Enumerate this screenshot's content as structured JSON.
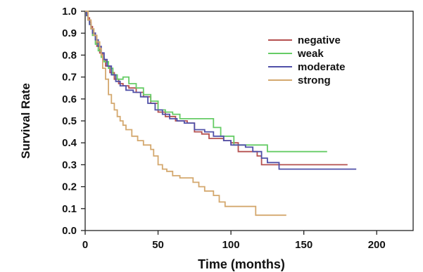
{
  "chart_data": {
    "type": "line",
    "xlabel": "Time (months)",
    "ylabel": "Survival Rate",
    "xlim": [
      0,
      225
    ],
    "ylim": [
      0,
      1.0
    ],
    "x_ticks": [
      "0",
      "50",
      "100",
      "150",
      "200"
    ],
    "y_ticks": [
      "0.0",
      "0.1",
      "0.2",
      "0.3",
      "0.4",
      "0.5",
      "0.6",
      "0.7",
      "0.8",
      "0.9",
      "1.0"
    ],
    "legend_position": "top-right",
    "grid": false,
    "step": true,
    "series": [
      {
        "name": "negative",
        "color": "#b5504f",
        "points": [
          [
            0,
            1.0
          ],
          [
            1,
            0.99
          ],
          [
            2,
            0.97
          ],
          [
            3,
            0.95
          ],
          [
            4,
            0.93
          ],
          [
            5,
            0.9
          ],
          [
            7,
            0.87
          ],
          [
            8,
            0.84
          ],
          [
            10,
            0.81
          ],
          [
            12,
            0.78
          ],
          [
            14,
            0.75
          ],
          [
            17,
            0.72
          ],
          [
            20,
            0.69
          ],
          [
            23,
            0.67
          ],
          [
            26,
            0.66
          ],
          [
            30,
            0.65
          ],
          [
            35,
            0.63
          ],
          [
            40,
            0.61
          ],
          [
            45,
            0.58
          ],
          [
            50,
            0.54
          ],
          [
            55,
            0.52
          ],
          [
            62,
            0.5
          ],
          [
            70,
            0.49
          ],
          [
            75,
            0.45
          ],
          [
            80,
            0.44
          ],
          [
            85,
            0.42
          ],
          [
            95,
            0.41
          ],
          [
            100,
            0.4
          ],
          [
            105,
            0.36
          ],
          [
            118,
            0.34
          ],
          [
            121,
            0.3
          ],
          [
            180,
            0.3
          ]
        ]
      },
      {
        "name": "weak",
        "color": "#66cc66",
        "points": [
          [
            0,
            1.0
          ],
          [
            1,
            0.98
          ],
          [
            2,
            0.96
          ],
          [
            3,
            0.94
          ],
          [
            4,
            0.92
          ],
          [
            5,
            0.89
          ],
          [
            7,
            0.85
          ],
          [
            9,
            0.82
          ],
          [
            11,
            0.79
          ],
          [
            13,
            0.77
          ],
          [
            16,
            0.74
          ],
          [
            19,
            0.71
          ],
          [
            22,
            0.69
          ],
          [
            26,
            0.7
          ],
          [
            30,
            0.67
          ],
          [
            35,
            0.65
          ],
          [
            40,
            0.62
          ],
          [
            45,
            0.59
          ],
          [
            50,
            0.55
          ],
          [
            55,
            0.54
          ],
          [
            60,
            0.53
          ],
          [
            65,
            0.51
          ],
          [
            70,
            0.51
          ],
          [
            88,
            0.47
          ],
          [
            93,
            0.43
          ],
          [
            100,
            0.43
          ],
          [
            102,
            0.39
          ],
          [
            110,
            0.39
          ],
          [
            120,
            0.39
          ],
          [
            125,
            0.36
          ],
          [
            166,
            0.36
          ]
        ]
      },
      {
        "name": "moderate",
        "color": "#5050a8",
        "points": [
          [
            0,
            1.0
          ],
          [
            1,
            0.98
          ],
          [
            2,
            0.96
          ],
          [
            3,
            0.94
          ],
          [
            4,
            0.92
          ],
          [
            5,
            0.9
          ],
          [
            7,
            0.87
          ],
          [
            9,
            0.84
          ],
          [
            11,
            0.81
          ],
          [
            13,
            0.78
          ],
          [
            15,
            0.75
          ],
          [
            18,
            0.71
          ],
          [
            21,
            0.68
          ],
          [
            24,
            0.66
          ],
          [
            28,
            0.64
          ],
          [
            33,
            0.63
          ],
          [
            38,
            0.61
          ],
          [
            43,
            0.58
          ],
          [
            48,
            0.55
          ],
          [
            53,
            0.53
          ],
          [
            58,
            0.51
          ],
          [
            63,
            0.5
          ],
          [
            68,
            0.49
          ],
          [
            75,
            0.46
          ],
          [
            82,
            0.45
          ],
          [
            88,
            0.43
          ],
          [
            95,
            0.41
          ],
          [
            100,
            0.39
          ],
          [
            110,
            0.38
          ],
          [
            115,
            0.36
          ],
          [
            121,
            0.33
          ],
          [
            125,
            0.31
          ],
          [
            133,
            0.28
          ],
          [
            186,
            0.28
          ]
        ]
      },
      {
        "name": "strong",
        "color": "#d4a86e",
        "points": [
          [
            0,
            1.0
          ],
          [
            2,
            0.96
          ],
          [
            4,
            0.92
          ],
          [
            6,
            0.89
          ],
          [
            8,
            0.86
          ],
          [
            10,
            0.83
          ],
          [
            11,
            0.8
          ],
          [
            12,
            0.74
          ],
          [
            14,
            0.69
          ],
          [
            16,
            0.62
          ],
          [
            18,
            0.58
          ],
          [
            20,
            0.55
          ],
          [
            22,
            0.52
          ],
          [
            24,
            0.5
          ],
          [
            26,
            0.48
          ],
          [
            28,
            0.46
          ],
          [
            32,
            0.43
          ],
          [
            36,
            0.41
          ],
          [
            40,
            0.39
          ],
          [
            45,
            0.37
          ],
          [
            47,
            0.34
          ],
          [
            50,
            0.3
          ],
          [
            53,
            0.28
          ],
          [
            56,
            0.27
          ],
          [
            60,
            0.25
          ],
          [
            65,
            0.24
          ],
          [
            74,
            0.22
          ],
          [
            78,
            0.2
          ],
          [
            82,
            0.18
          ],
          [
            88,
            0.16
          ],
          [
            92,
            0.13
          ],
          [
            96,
            0.11
          ],
          [
            117,
            0.07
          ],
          [
            138,
            0.07
          ]
        ]
      }
    ]
  }
}
